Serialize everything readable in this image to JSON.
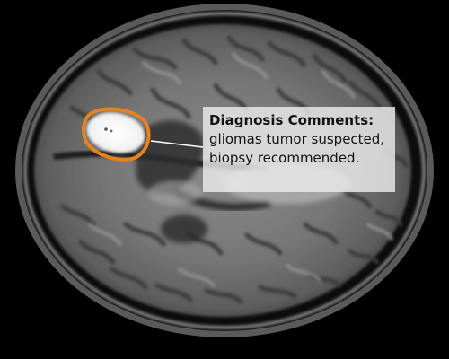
{
  "annotation": {
    "title": "Diagnosis Comments:",
    "lines": [
      "gliomas tumor suspected,",
      "biopsy recommended."
    ],
    "marker_color": "#e8821e",
    "leader_color": "#ffffff",
    "box_background": "#ebebeb"
  },
  "image": {
    "subject": "axial brain MRI scan",
    "lesion_highlight": "lesion-outline"
  }
}
